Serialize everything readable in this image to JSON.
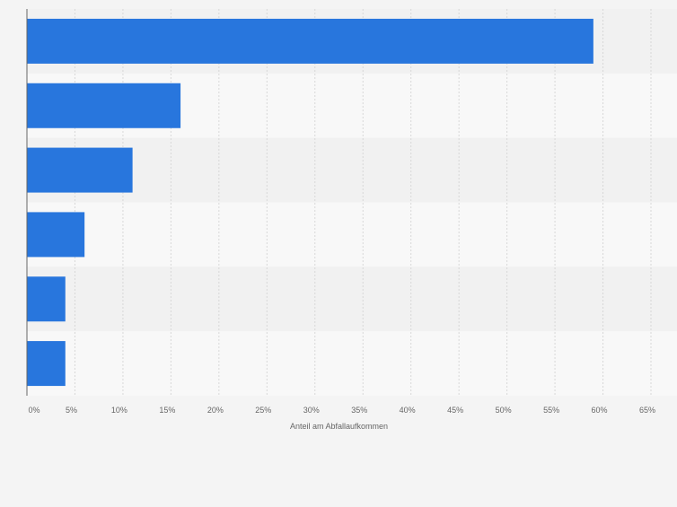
{
  "chart_data": {
    "type": "bar",
    "orientation": "horizontal",
    "categories": [
      "",
      "",
      "",
      "",
      "",
      ""
    ],
    "values": [
      59,
      16,
      11,
      6,
      4,
      4
    ],
    "xlabel": "Anteil am Abfallaufkommen",
    "ylabel": "",
    "xlim": [
      0,
      65
    ],
    "ticks": [
      "0%",
      "5%",
      "10%",
      "15%",
      "20%",
      "25%",
      "30%",
      "35%",
      "40%",
      "45%",
      "50%",
      "55%",
      "60%",
      "65%"
    ],
    "grid": true,
    "legend": "none",
    "colors": {
      "bar": "#2876dd",
      "band_dark": "#f1f1f1",
      "band_light": "#f8f8f8",
      "grid": "#d8d8d8",
      "axis": "#666666",
      "text": "#666666"
    }
  }
}
